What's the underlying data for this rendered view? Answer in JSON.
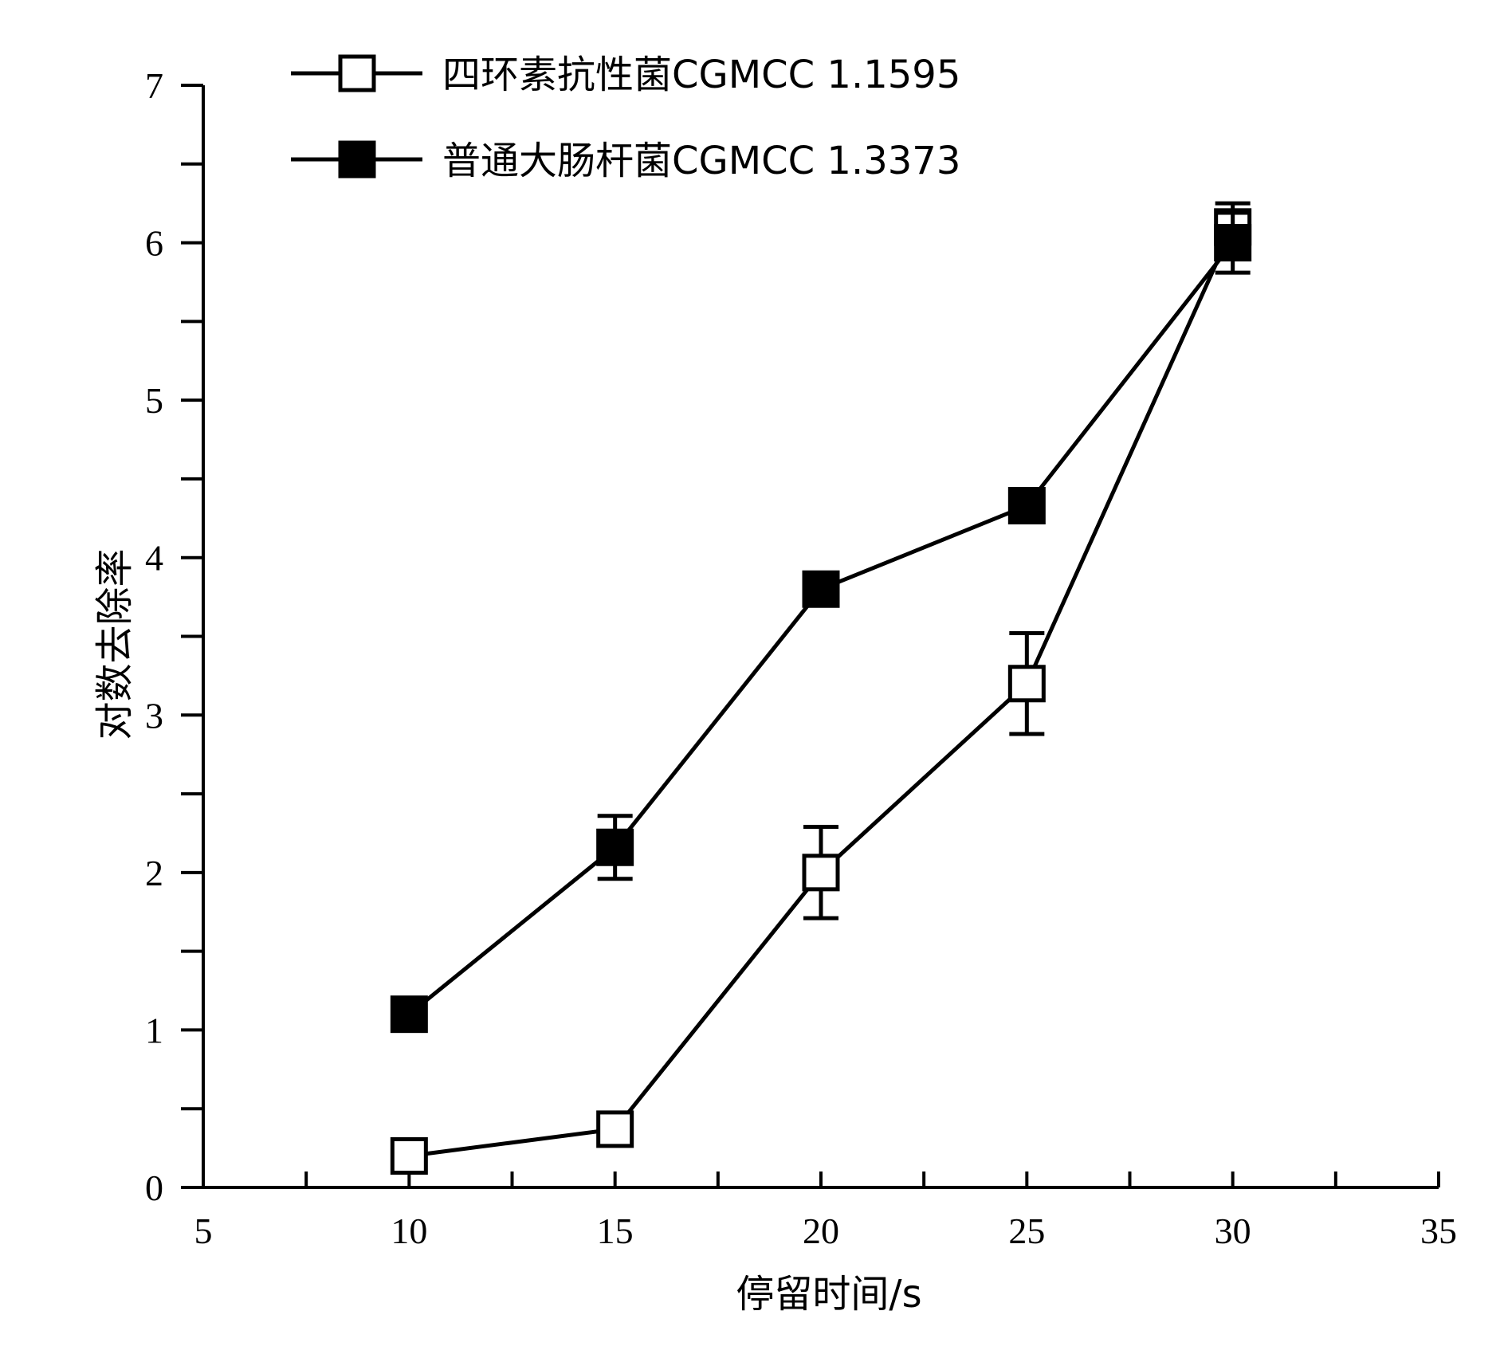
{
  "chart_data": {
    "type": "line",
    "title": "",
    "xlabel": "停留时间/s",
    "ylabel": "对数去除率",
    "xlim": [
      5,
      35
    ],
    "ylim": [
      0,
      7
    ],
    "x_ticks": [
      5,
      10,
      15,
      20,
      25,
      30,
      35
    ],
    "y_ticks": [
      0,
      1,
      2,
      3,
      4,
      5,
      6,
      7
    ],
    "x_minor_step": 2.5,
    "y_minor_step": 0.5,
    "grid": false,
    "legend_position": "top-left",
    "series": [
      {
        "name": "四环素抗性菌CGMCC 1.1595",
        "marker": "open-square",
        "color": "#000000",
        "x": [
          10,
          15,
          20,
          25,
          30
        ],
        "y": [
          0.2,
          0.37,
          2.0,
          3.2,
          6.1
        ],
        "error": [
          0,
          0,
          0.29,
          0.32,
          0.15
        ]
      },
      {
        "name": "普通大肠杆菌CGMCC 1.3373",
        "marker": "filled-square",
        "color": "#000000",
        "x": [
          10,
          15,
          20,
          25,
          30
        ],
        "y": [
          1.1,
          2.16,
          3.8,
          4.33,
          6.0
        ],
        "error": [
          0,
          0.2,
          0,
          0,
          0.19
        ]
      }
    ]
  }
}
